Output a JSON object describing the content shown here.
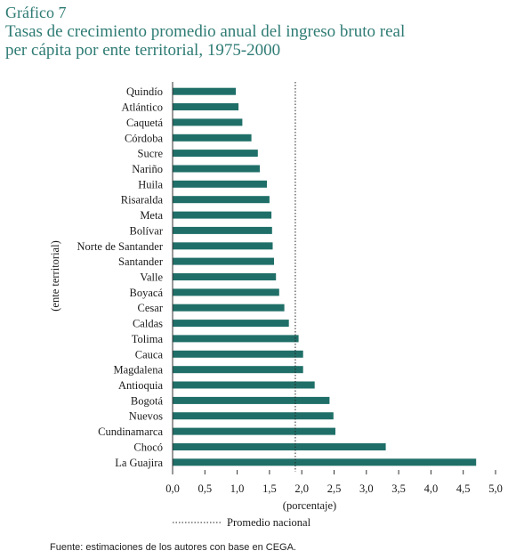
{
  "heading": {
    "kicker": "Gráfico 7",
    "title_line1": "Tasas de crecimiento promedio anual del ingreso bruto real",
    "title_line2": "per cápita por ente territorial, 1975-2000"
  },
  "source": "Fuente: estimaciones de los autores con base en CEGA.",
  "colors": {
    "bar": "#1f6f68",
    "title": "#2e7b74"
  },
  "chart_data": {
    "type": "bar",
    "orientation": "horizontal",
    "categories": [
      "Quindío",
      "Atlántico",
      "Caquetá",
      "Córdoba",
      "Sucre",
      "Nariño",
      "Huila",
      "Risaralda",
      "Meta",
      "Bolívar",
      "Norte de Santander",
      "Santander",
      "Valle",
      "Boyacá",
      "Cesar",
      "Caldas",
      "Tolima",
      "Cauca",
      "Magdalena",
      "Antioquia",
      "Bogotá",
      "Nuevos",
      "Cundinamarca",
      "Chocó",
      "La Guajira"
    ],
    "values": [
      0.98,
      1.02,
      1.08,
      1.22,
      1.32,
      1.35,
      1.46,
      1.5,
      1.53,
      1.54,
      1.55,
      1.57,
      1.6,
      1.65,
      1.73,
      1.8,
      1.95,
      2.02,
      2.02,
      2.2,
      2.43,
      2.49,
      2.52,
      3.3,
      4.7
    ],
    "xlim": [
      0,
      5
    ],
    "xticks": [
      "0,0",
      "0,5",
      "1,0",
      "1,5",
      "2,0",
      "2,5",
      "3,0",
      "3,5",
      "4,0",
      "4,5",
      "5,0"
    ],
    "xlabel": "(porcentaje)",
    "ylabel": "(ente territorial)",
    "reference_line": {
      "value": 1.9,
      "label": "Promedio nacional",
      "style": "dotted"
    },
    "legend": {
      "placement": "bottom-center",
      "label": "Promedio nacional"
    },
    "grid": false
  }
}
